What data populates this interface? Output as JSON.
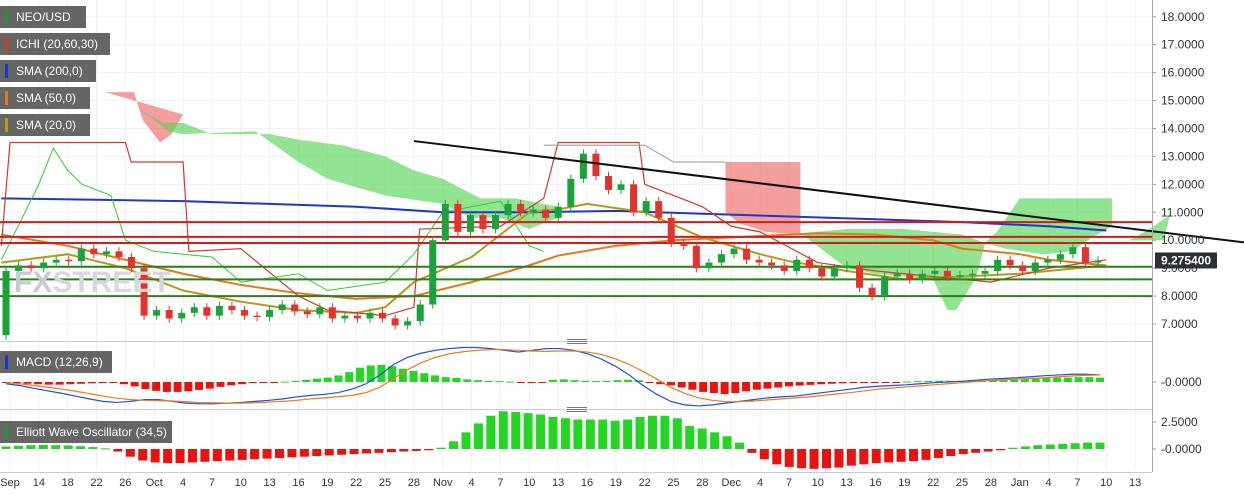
{
  "chart_data": [
    {
      "type": "candlestick",
      "panel": "price",
      "legend": [
        "NEO/USD",
        "ICHI (20,60,30)",
        "SMA (200,0)",
        "SMA (50,0)",
        "SMA (20,0)"
      ],
      "legend_colors": [
        "#2a8f3a",
        "#d33a2f",
        "#1d38c8",
        "#e07a1f",
        "#b59a1a"
      ],
      "y_ticks": [
        "18.0000",
        "17.0000",
        "16.0000",
        "15.0000",
        "14.0000",
        "13.0000",
        "12.0000",
        "11.0000",
        "10.0000",
        "9.0000",
        "8.0000",
        "7.0000"
      ],
      "ylim": [
        6.5,
        18.6
      ],
      "current_price": "9.275400",
      "horizontal_levels": {
        "resistance_red": [
          10.65,
          10.12,
          9.9
        ],
        "support_green": [
          9.05,
          8.6,
          8.0
        ]
      },
      "trendline": {
        "from": {
          "x": 14,
          "y": 13.55
        },
        "to": {
          "x": 48.5,
          "y": 9.2
        }
      },
      "candles": [
        [
          6.6,
          8.9
        ],
        [
          8.9,
          9.1
        ],
        [
          9.1,
          9.0
        ],
        [
          9.0,
          9.2
        ],
        [
          9.2,
          9.3
        ],
        [
          9.3,
          9.25
        ],
        [
          9.25,
          9.7
        ],
        [
          9.7,
          9.5
        ],
        [
          9.5,
          9.6
        ],
        [
          9.6,
          9.4
        ],
        [
          9.4,
          9.0
        ],
        [
          9.0,
          7.3
        ],
        [
          7.3,
          7.5
        ],
        [
          7.5,
          7.2
        ],
        [
          7.2,
          7.4
        ],
        [
          7.4,
          7.6
        ],
        [
          7.6,
          7.3
        ],
        [
          7.3,
          7.65
        ],
        [
          7.65,
          7.5
        ],
        [
          7.5,
          7.3
        ],
        [
          7.3,
          7.25
        ],
        [
          7.25,
          7.5
        ],
        [
          7.5,
          7.7
        ],
        [
          7.7,
          7.45
        ],
        [
          7.45,
          7.35
        ],
        [
          7.35,
          7.6
        ],
        [
          7.6,
          7.2
        ],
        [
          7.2,
          7.3
        ],
        [
          7.3,
          7.2
        ],
        [
          7.2,
          7.4
        ],
        [
          7.4,
          7.2
        ],
        [
          7.2,
          6.95
        ],
        [
          6.95,
          7.1
        ],
        [
          7.1,
          7.7
        ],
        [
          7.7,
          10.0
        ],
        [
          10.0,
          11.3
        ],
        [
          11.3,
          10.3
        ],
        [
          10.3,
          10.9
        ],
        [
          10.9,
          10.4
        ],
        [
          10.4,
          10.9
        ],
        [
          10.9,
          11.3
        ],
        [
          11.3,
          11.0
        ],
        [
          11.0,
          11.1
        ],
        [
          11.1,
          10.8
        ],
        [
          10.8,
          11.2
        ],
        [
          11.2,
          12.2
        ],
        [
          12.2,
          13.1
        ],
        [
          13.1,
          12.3
        ],
        [
          12.3,
          11.8
        ],
        [
          11.8,
          12.0
        ],
        [
          12.0,
          11.0
        ],
        [
          11.0,
          11.4
        ],
        [
          11.4,
          10.8
        ],
        [
          10.8,
          9.9
        ],
        [
          9.9,
          9.8
        ],
        [
          9.8,
          9.0
        ],
        [
          9.0,
          9.2
        ],
        [
          9.2,
          9.5
        ],
        [
          9.5,
          9.7
        ],
        [
          9.7,
          9.3
        ],
        [
          9.3,
          9.2
        ],
        [
          9.2,
          9.1
        ],
        [
          9.1,
          8.9
        ],
        [
          8.9,
          9.3
        ],
        [
          9.3,
          9.0
        ],
        [
          9.0,
          8.7
        ],
        [
          8.7,
          9.0
        ],
        [
          9.0,
          9.1
        ],
        [
          9.1,
          8.3
        ],
        [
          8.3,
          8.0
        ],
        [
          8.0,
          8.7
        ],
        [
          8.7,
          8.8
        ],
        [
          8.8,
          8.6
        ],
        [
          8.6,
          8.8
        ],
        [
          8.8,
          8.9
        ],
        [
          8.9,
          8.7
        ],
        [
          8.7,
          8.75
        ],
        [
          8.75,
          8.8
        ],
        [
          8.8,
          8.9
        ],
        [
          8.9,
          9.3
        ],
        [
          9.3,
          9.1
        ],
        [
          9.1,
          8.9
        ],
        [
          8.9,
          9.2
        ],
        [
          9.2,
          9.3
        ],
        [
          9.3,
          9.5
        ],
        [
          9.5,
          9.75
        ],
        [
          9.75,
          9.2
        ],
        [
          9.2,
          9.28
        ]
      ],
      "x_tick_labels": [
        "Sep",
        "14",
        "18",
        "22",
        "26",
        "Oct",
        "4",
        "7",
        "10",
        "13",
        "16",
        "19",
        "22",
        "25",
        "28",
        "Nov",
        "4",
        "7",
        "10",
        "13",
        "16",
        "19",
        "22",
        "25",
        "28",
        "Dec",
        "4",
        "7",
        "10",
        "13",
        "16",
        "19",
        "22",
        "25",
        "28",
        "Jan",
        "4",
        "7",
        "10",
        "13"
      ]
    },
    {
      "type": "histogram+line",
      "panel": "macd",
      "legend": "MACD (12,26,9)",
      "legend_color": "#1d38c8",
      "y_ticks": [
        "-0.0000"
      ],
      "histogram": [
        -0.02,
        -0.05,
        -0.08,
        -0.1,
        -0.12,
        -0.12,
        -0.1,
        -0.08,
        -0.06,
        -0.05,
        -0.04,
        -0.1,
        -0.2,
        -0.32,
        -0.4,
        -0.45,
        -0.45,
        -0.42,
        -0.36,
        -0.3,
        -0.22,
        -0.15,
        -0.1,
        -0.05,
        -0.03,
        -0.02,
        0.02,
        0.05,
        0.1,
        0.15,
        0.2,
        0.3,
        0.45,
        0.65,
        0.75,
        0.78,
        0.72,
        0.6,
        0.5,
        0.4,
        0.3,
        0.22,
        0.18,
        0.12,
        0.08,
        0.05,
        0.04,
        0.02,
        -0.02,
        -0.05,
        -0.02,
        0.1,
        0.12,
        0.08,
        0.05,
        0.04,
        0.05,
        0.08,
        0.1,
        0.08,
        -0.05,
        -0.1,
        -0.15,
        -0.25,
        -0.35,
        -0.45,
        -0.5,
        -0.55,
        -0.5,
        -0.42,
        -0.35,
        -0.3,
        -0.25,
        -0.2,
        -0.16,
        -0.13,
        -0.1,
        -0.08,
        -0.06,
        -0.05,
        -0.05,
        -0.04,
        -0.03,
        -0.02,
        0.02,
        0.04,
        0.05,
        0.06,
        0.06,
        0.05,
        0.05,
        0.06,
        0.08,
        0.1,
        0.12,
        0.14,
        0.16,
        0.18,
        0.2,
        0.2,
        0.22,
        0.22,
        0.2
      ],
      "macd_line": [
        -0.05,
        -0.1,
        -0.18,
        -0.25,
        -0.32,
        -0.4,
        -0.48,
        -0.55,
        -0.58,
        -0.55,
        -0.5,
        -0.5,
        -0.55,
        -0.6,
        -0.62,
        -0.62,
        -0.6,
        -0.58,
        -0.55,
        -0.52,
        -0.48,
        -0.42,
        -0.38,
        -0.35,
        -0.3,
        -0.2,
        -0.05,
        0.2,
        0.5,
        0.7,
        0.82,
        0.9,
        0.95,
        0.98,
        0.98,
        0.95,
        0.9,
        0.85,
        0.9,
        0.95,
        0.95,
        0.9,
        0.8,
        0.65,
        0.45,
        0.2,
        -0.1,
        -0.35,
        -0.55,
        -0.65,
        -0.68,
        -0.65,
        -0.6,
        -0.55,
        -0.5,
        -0.45,
        -0.42,
        -0.4,
        -0.35,
        -0.3,
        -0.25,
        -0.2,
        -0.15,
        -0.12,
        -0.1,
        -0.08,
        -0.05,
        -0.02,
        0.0,
        0.02,
        0.05,
        0.08,
        0.1,
        0.12,
        0.15,
        0.18,
        0.2,
        0.22,
        0.22,
        0.2
      ],
      "signal_line": [
        -0.02,
        -0.05,
        -0.1,
        -0.15,
        -0.2,
        -0.26,
        -0.33,
        -0.4,
        -0.46,
        -0.5,
        -0.52,
        -0.53,
        -0.54,
        -0.56,
        -0.58,
        -0.59,
        -0.6,
        -0.6,
        -0.59,
        -0.57,
        -0.55,
        -0.52,
        -0.48,
        -0.45,
        -0.42,
        -0.38,
        -0.3,
        -0.15,
        0.1,
        0.35,
        0.55,
        0.7,
        0.8,
        0.86,
        0.9,
        0.92,
        0.92,
        0.9,
        0.88,
        0.87,
        0.88,
        0.88,
        0.85,
        0.78,
        0.66,
        0.5,
        0.3,
        0.08,
        -0.15,
        -0.32,
        -0.45,
        -0.52,
        -0.56,
        -0.56,
        -0.54,
        -0.51,
        -0.48,
        -0.45,
        -0.42,
        -0.38,
        -0.34,
        -0.3,
        -0.25,
        -0.2,
        -0.17,
        -0.14,
        -0.11,
        -0.08,
        -0.05,
        -0.02,
        0.01,
        0.04,
        0.06,
        0.08,
        0.1,
        0.12,
        0.15,
        0.17,
        0.19,
        0.2
      ]
    },
    {
      "type": "histogram",
      "panel": "elliott",
      "legend": "Elliott Wave Oscillator (34,5)",
      "legend_color": "#2a8f3a",
      "y_ticks": [
        "2.5000",
        "-0.0000"
      ],
      "values": [
        0.2,
        0.25,
        0.3,
        0.32,
        0.3,
        0.28,
        0.22,
        0.15,
        0.05,
        -0.2,
        -0.6,
        -0.9,
        -1.05,
        -1.1,
        -1.1,
        -1.05,
        -1.0,
        -0.95,
        -0.9,
        -0.85,
        -0.8,
        -0.75,
        -0.7,
        -0.65,
        -0.6,
        -0.55,
        -0.5,
        -0.45,
        -0.4,
        -0.35,
        -0.3,
        -0.25,
        -0.2,
        -0.15,
        -0.1,
        0.1,
        0.6,
        1.3,
        2.0,
        2.6,
        2.95,
        2.9,
        2.8,
        2.7,
        2.5,
        2.4,
        2.3,
        2.3,
        2.3,
        2.2,
        2.3,
        2.5,
        2.6,
        2.6,
        2.4,
        1.8,
        1.6,
        1.3,
        1.0,
        0.5,
        -0.3,
        -0.8,
        -1.2,
        -1.4,
        -1.5,
        -1.55,
        -1.5,
        -1.45,
        -1.3,
        -1.2,
        -1.1,
        -1.05,
        -1.0,
        -0.95,
        -0.85,
        -0.7,
        -0.55,
        -0.4,
        -0.3,
        -0.2,
        -0.1,
        0.1,
        0.2,
        0.3,
        0.35,
        0.4,
        0.45,
        0.5,
        0.5
      ]
    }
  ],
  "watermark": {
    "part1": "FX",
    "part2": "STREET"
  }
}
